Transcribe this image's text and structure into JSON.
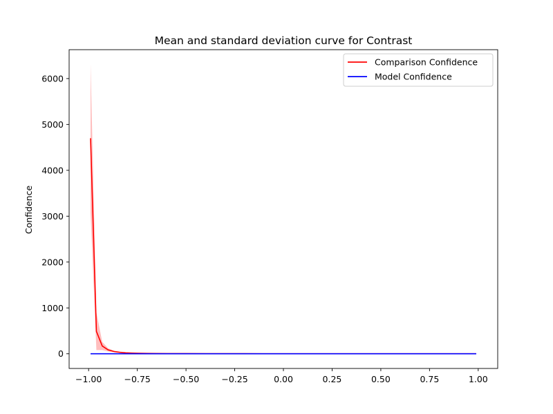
{
  "chart_data": {
    "type": "line",
    "title": "Mean and standard deviation curve for Contrast",
    "xlabel": "",
    "ylabel": "Confidence",
    "xlim": [
      -1.1,
      1.1
    ],
    "ylim": [
      -320,
      6630
    ],
    "x_ticks": [
      -1.0,
      -0.75,
      -0.5,
      -0.25,
      0.0,
      0.25,
      0.5,
      0.75,
      1.0
    ],
    "x_tick_labels": [
      "−1.00",
      "−0.75",
      "−0.50",
      "−0.25",
      "0.00",
      "0.25",
      "0.50",
      "0.75",
      "1.00"
    ],
    "y_ticks": [
      0,
      1000,
      2000,
      3000,
      4000,
      5000,
      6000
    ],
    "y_tick_labels": [
      "0",
      "1000",
      "2000",
      "3000",
      "4000",
      "5000",
      "6000"
    ],
    "grid": false,
    "legend_position": "upper right",
    "series": [
      {
        "name": "Comparison Confidence",
        "color": "#ff0000",
        "band_color": "#ffb3b3",
        "x": [
          -0.99,
          -0.96,
          -0.93,
          -0.9,
          -0.87,
          -0.84,
          -0.81,
          -0.78,
          -0.75,
          -0.7,
          -0.65,
          -0.6,
          -0.5,
          -0.4,
          -0.3,
          -0.2,
          -0.1,
          0.0,
          0.1,
          0.2,
          0.3,
          0.4,
          0.5,
          0.6,
          0.7,
          0.8,
          0.9,
          0.99
        ],
        "y": [
          4700,
          490,
          170,
          85,
          50,
          32,
          22,
          16,
          12,
          9,
          7,
          5,
          4,
          3,
          2,
          2,
          1,
          1,
          1,
          1,
          1,
          1,
          1,
          1,
          1,
          1,
          1,
          1
        ],
        "band_upper": [
          6320,
          900,
          260,
          120,
          65,
          40,
          27,
          19,
          14,
          10,
          8,
          6,
          5,
          4,
          3,
          2,
          2,
          1,
          1,
          1,
          1,
          1,
          1,
          1,
          1,
          1,
          1,
          1
        ],
        "band_lower": [
          3080,
          80,
          80,
          50,
          35,
          24,
          17,
          13,
          10,
          8,
          6,
          4,
          3,
          2,
          1,
          1,
          0,
          0,
          0,
          0,
          0,
          0,
          0,
          0,
          0,
          0,
          0,
          0
        ]
      },
      {
        "name": "Model Confidence",
        "color": "#0000ff",
        "x": [
          -0.99,
          0.99
        ],
        "y": [
          1,
          1
        ]
      }
    ]
  }
}
